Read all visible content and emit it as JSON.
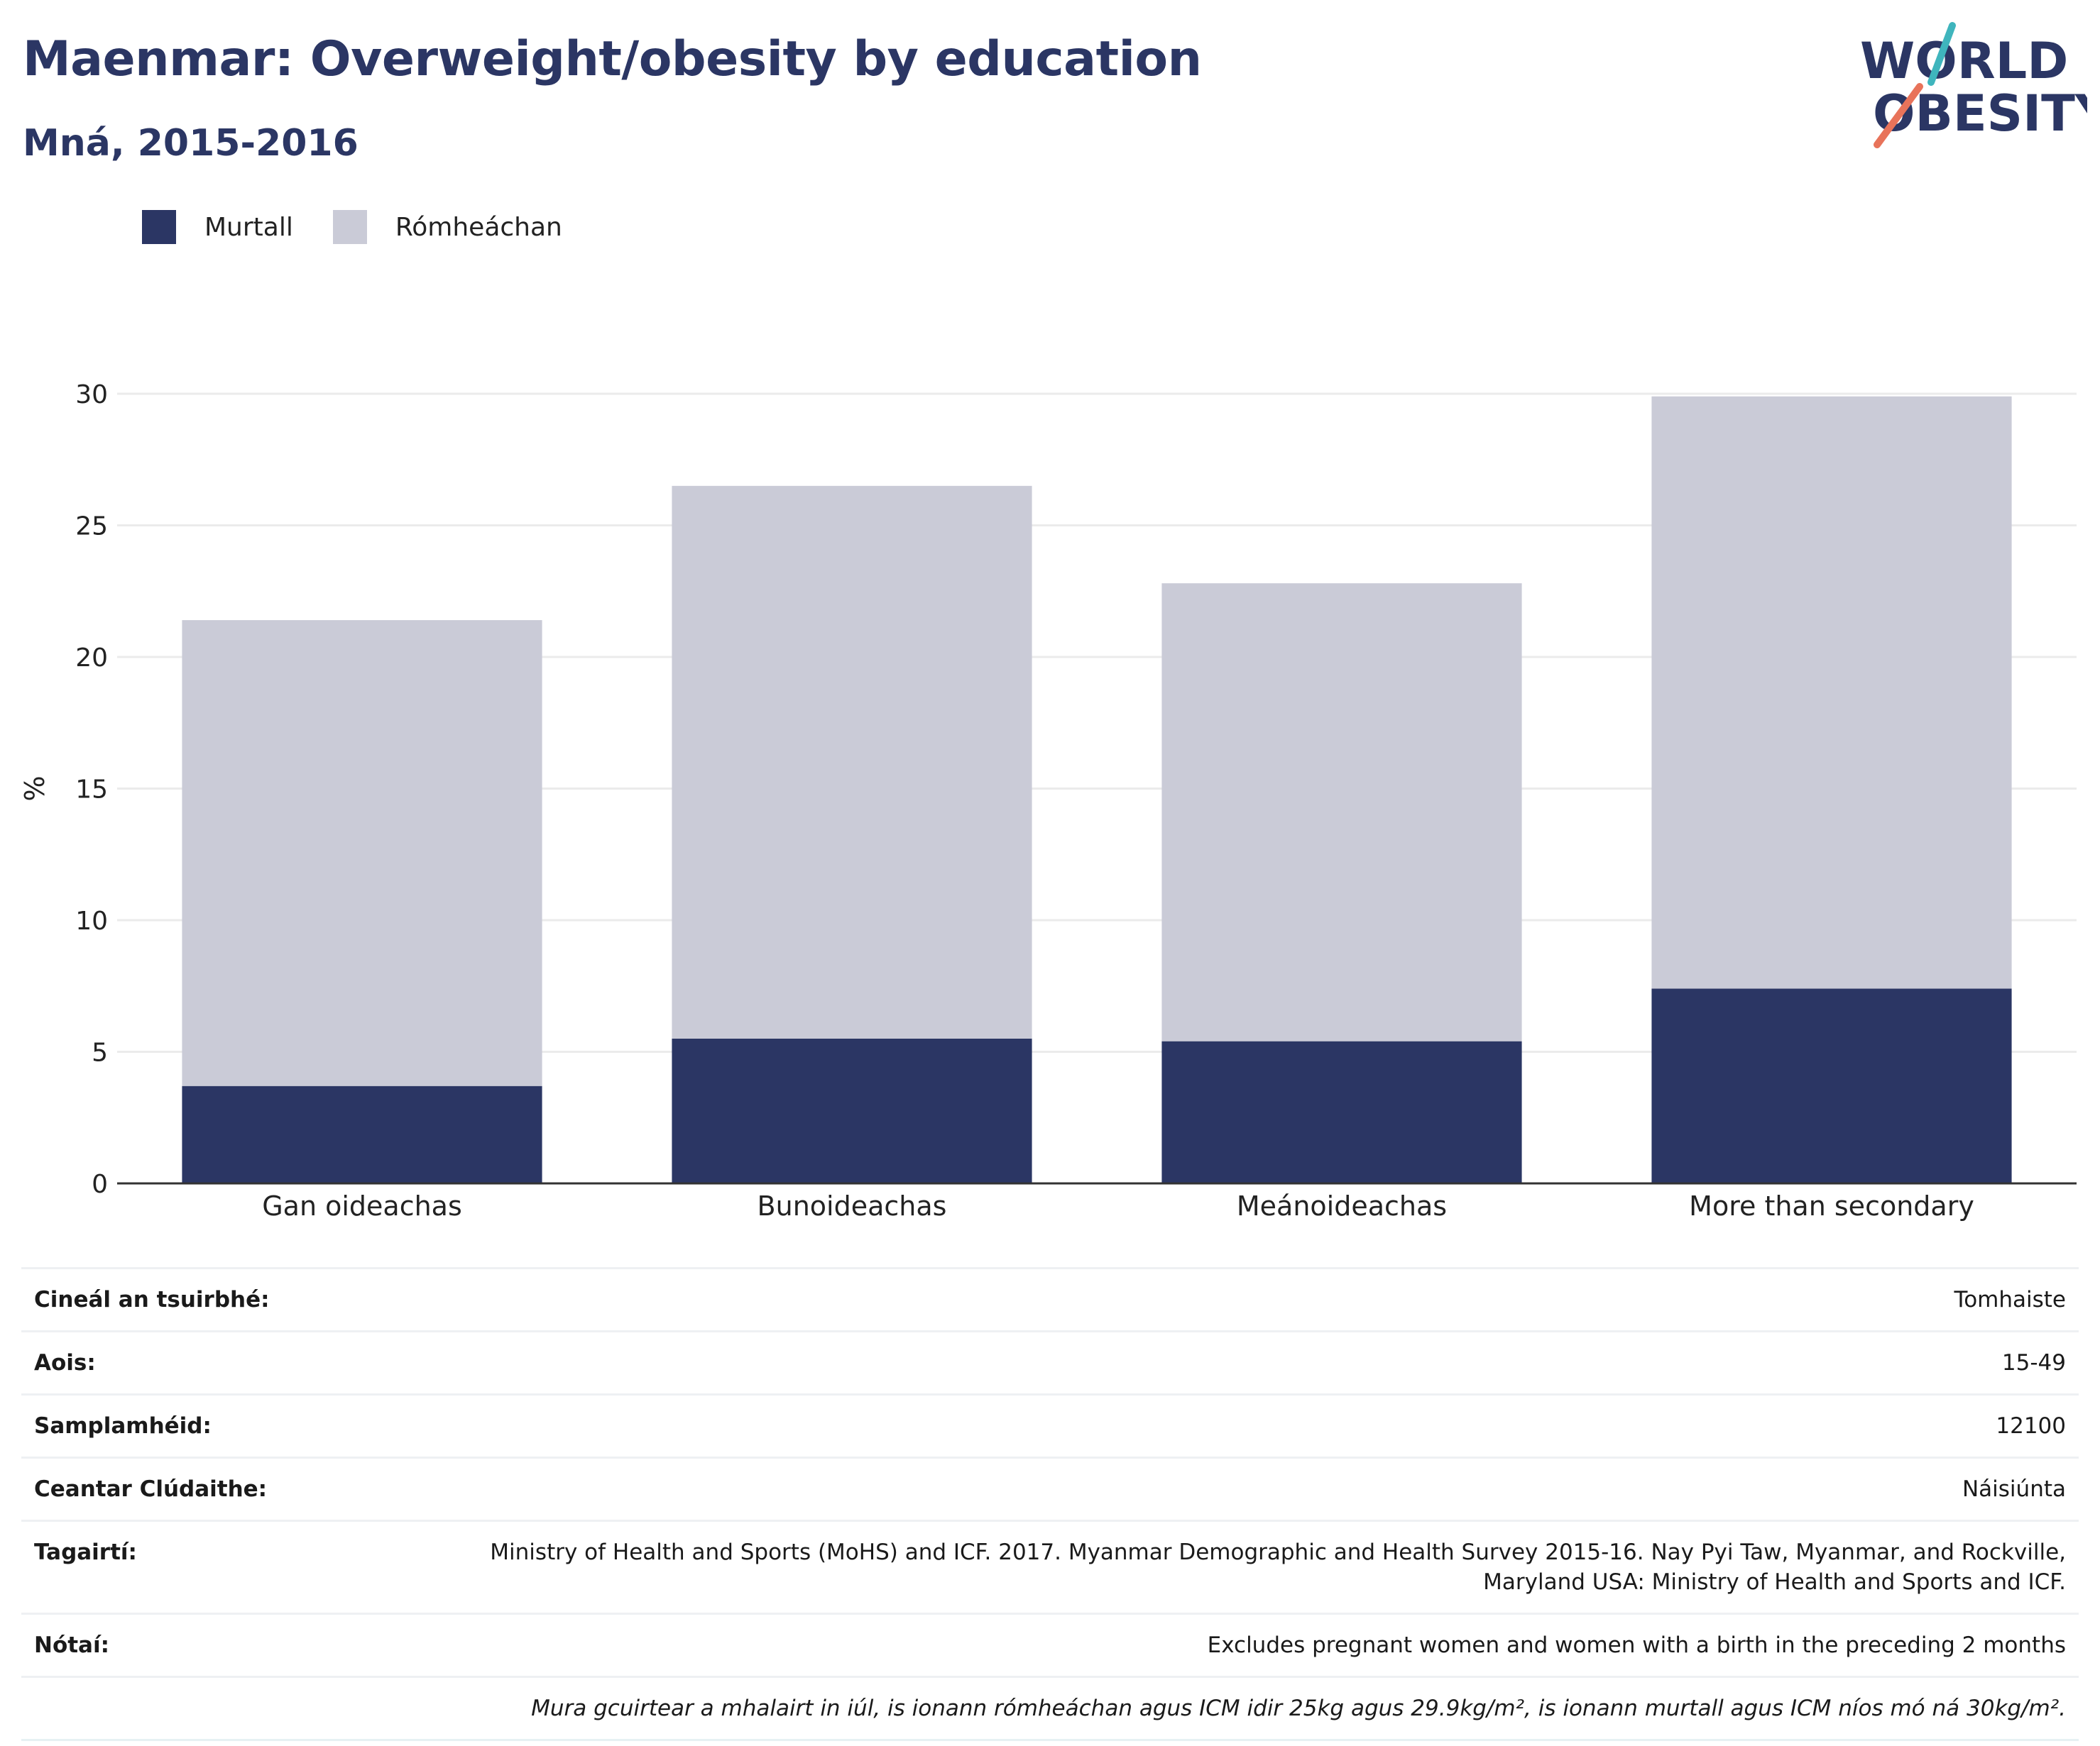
{
  "header": {
    "title": "Maenmar: Overweight/obesity by education",
    "subtitle": "Mná, 2015-2016"
  },
  "logo": {
    "line1": "WORLD",
    "line2": "OBESITY"
  },
  "colors": {
    "obese": "#2b3664",
    "overweight": "#cacbd7",
    "title": "#2b3664",
    "logo_teal": "#3fb5bd",
    "logo_coral": "#e8735a",
    "grid": "#ebebeb",
    "axis": "#333333"
  },
  "chart_data": {
    "type": "bar",
    "stacked": true,
    "categories": [
      "Gan oideachas",
      "Bunoideachas",
      "Meánoideachas",
      "More than secondary"
    ],
    "series": [
      {
        "name": "Murtall",
        "values": [
          3.7,
          5.5,
          5.4,
          7.4
        ]
      },
      {
        "name": "Rómheáchan",
        "values": [
          17.7,
          21.0,
          17.4,
          22.5
        ]
      }
    ],
    "ylabel": "%",
    "ylim": [
      0,
      30
    ],
    "yticks": [
      0,
      5,
      10,
      15,
      20,
      25,
      30
    ],
    "grid": true,
    "legend_position": "top-left"
  },
  "info_table": [
    {
      "key": "Cineál an tsuirbhé:",
      "value": "Tomhaiste"
    },
    {
      "key": "Aois:",
      "value": "15-49"
    },
    {
      "key": "Samplamhéid:",
      "value": "12100"
    },
    {
      "key": "Ceantar Clúdaithe:",
      "value": "Náisiúnta"
    },
    {
      "key": "Tagairtí:",
      "value": "Ministry of Health and Sports (MoHS) and ICF. 2017. Myanmar Demographic and Health Survey 2015-16. Nay Pyi Taw, Myanmar, and Rockville, Maryland USA: Ministry of Health and Sports and ICF."
    },
    {
      "key": "Nótaí:",
      "value": "Excludes pregnant women and women with a birth in the preceding 2 months"
    }
  ],
  "footnote": "Mura gcuirtear a mhalairt in iúl, is ionann rómheáchan agus ICM idir 25kg agus 29.9kg/m², is ionann murtall agus ICM níos mó ná 30kg/m²."
}
